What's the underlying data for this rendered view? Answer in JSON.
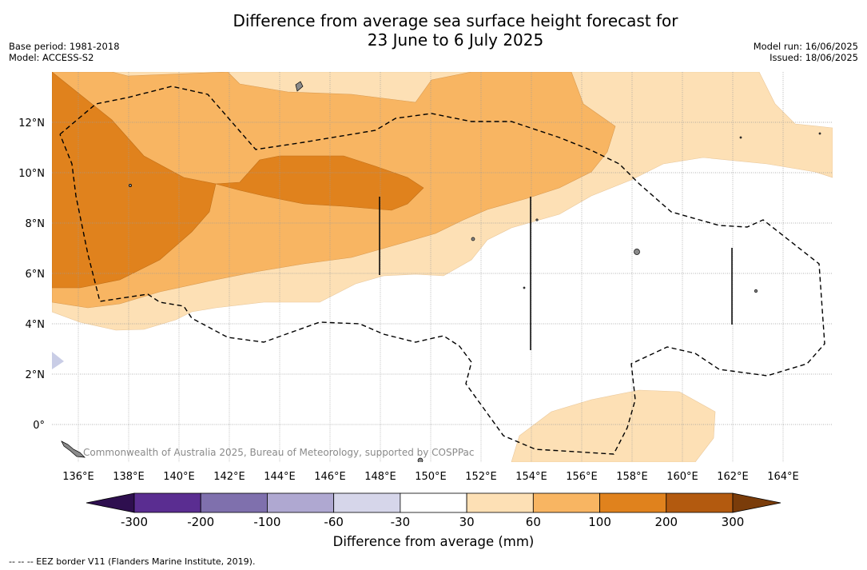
{
  "title_line1": "Difference from average sea surface height forecast for",
  "title_line2": "23 June to 6 July 2025",
  "meta_left": {
    "base_period": "Base period: 1981-2018",
    "model": "Model: ACCESS-S2"
  },
  "meta_right": {
    "model_run": "Model run: 16/06/2025",
    "issued": "Issued: 18/06/2025"
  },
  "copyright": "Commonwealth of Australia 2025, Bureau of Meteorology, supported by COSPPac",
  "lon_labels": [
    "136°E",
    "138°E",
    "140°E",
    "142°E",
    "144°E",
    "146°E",
    "148°E",
    "150°E",
    "152°E",
    "154°E",
    "156°E",
    "158°E",
    "160°E",
    "162°E",
    "164°E"
  ],
  "lat_labels": [
    "12°N",
    "10°N",
    "8°N",
    "6°N",
    "4°N",
    "2°N",
    "0°"
  ],
  "colorbar": {
    "ticks": [
      "-300",
      "-200",
      "-100",
      "-60",
      "-30",
      "30",
      "60",
      "100",
      "200",
      "300"
    ],
    "colors": [
      "#4b2a8c",
      "#5a2d91",
      "#7f70ad",
      "#afa8d1",
      "#d6d6ea",
      "#ffffff",
      "#fde0b5",
      "#f8b562",
      "#e0821d",
      "#b35a0f",
      "#7a3c0a"
    ],
    "label": "Difference from average (mm)"
  },
  "legend_note": "-- -- -- EEZ border V11 (Flanders Marine Institute, 2019)."
}
